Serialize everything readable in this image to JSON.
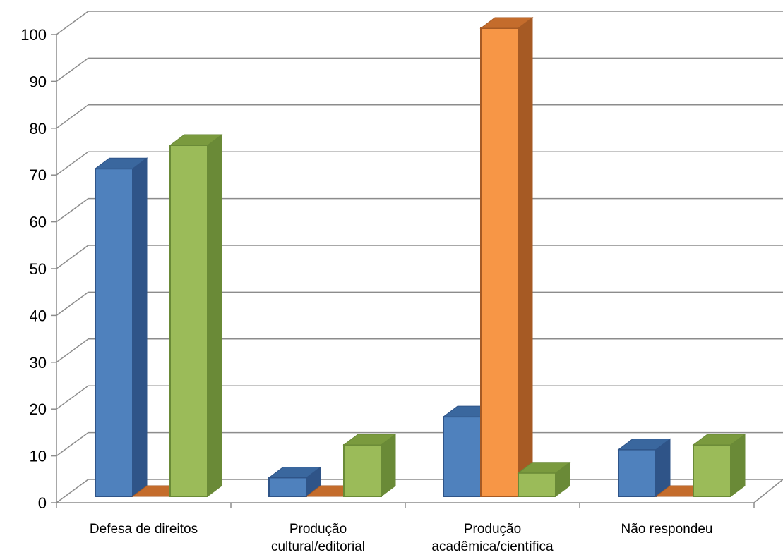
{
  "chart_data": {
    "type": "bar",
    "categories": [
      [
        "Defesa de direitos"
      ],
      [
        "Produção",
        "cultural/editorial"
      ],
      [
        "Produção",
        "acadêmica/científica"
      ],
      [
        "Não respondeu"
      ]
    ],
    "series": [
      {
        "values": [
          70,
          4,
          17,
          10
        ],
        "colors": {
          "front": "#4F81BD",
          "side": "#2F5488",
          "top": "#3A679E"
        }
      },
      {
        "values": [
          0,
          0,
          100,
          0
        ],
        "colors": {
          "front": "#F79646",
          "side": "#A65A24",
          "top": "#C46C2C"
        }
      },
      {
        "values": [
          75,
          11,
          5,
          11
        ],
        "colors": {
          "front": "#9BBB59",
          "side": "#6A8A37",
          "top": "#7A9A3E"
        }
      }
    ],
    "yticks": [
      0,
      10,
      20,
      30,
      40,
      50,
      60,
      70,
      80,
      90,
      100
    ],
    "ylim": [
      0,
      100
    ],
    "title": "",
    "xlabel": "",
    "ylabel": "",
    "grid": true,
    "style": "3d-clustered-column"
  }
}
